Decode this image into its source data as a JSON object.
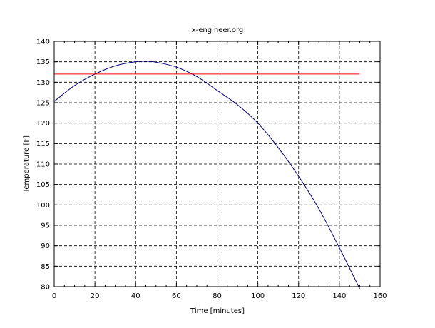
{
  "chart_data": {
    "type": "line",
    "title": "x-engineer.org",
    "xlabel": "Time [minutes]",
    "ylabel": "Temperature [F]",
    "xlim": [
      0,
      160
    ],
    "ylim": [
      80,
      140
    ],
    "xticks": [
      0,
      20,
      40,
      60,
      80,
      100,
      120,
      140,
      160
    ],
    "yticks": [
      80,
      85,
      90,
      95,
      100,
      105,
      110,
      115,
      120,
      125,
      130,
      135,
      140
    ],
    "xtick_labels": [
      "0",
      "20",
      "40",
      "60",
      "80",
      "100",
      "120",
      "140",
      "160"
    ],
    "ytick_labels": [
      "80",
      "85",
      "90",
      "95",
      "100",
      "105",
      "110",
      "115",
      "120",
      "125",
      "130",
      "135",
      "140"
    ],
    "grid": true,
    "series": [
      {
        "color": "#00007f",
        "x": [
          0,
          10,
          20,
          30,
          40,
          46,
          50,
          60,
          70,
          80,
          90,
          100,
          110,
          120,
          130,
          140,
          150
        ],
        "y": [
          125.3,
          129.2,
          132.0,
          134.0,
          135.0,
          135.1,
          134.9,
          133.7,
          131.4,
          128.0,
          124.5,
          120.0,
          114.0,
          107.0,
          99.0,
          89.5,
          79.5
        ]
      },
      {
        "color": "#ff0000",
        "x": [
          0,
          150
        ],
        "y": [
          132,
          132
        ]
      }
    ]
  }
}
